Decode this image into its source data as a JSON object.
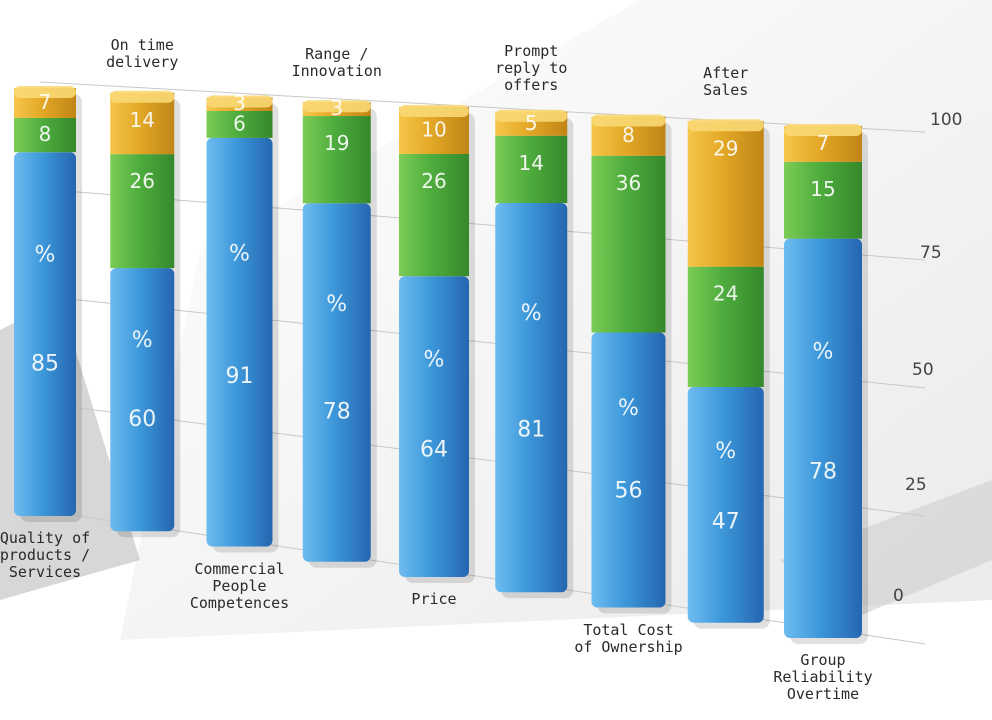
{
  "chart_data": {
    "type": "bar",
    "stacked": true,
    "categories": [
      "Quality of products / Services",
      "On time delivery",
      "Commercial People Competences",
      "Range / Innovation",
      "Price",
      "Prompt reply to offers",
      "Total Cost of Ownership",
      "After Sales",
      "Group Reliability Overtime"
    ],
    "label_lines": [
      [
        "Quality of",
        "products /",
        "Services"
      ],
      [
        "On time",
        "delivery"
      ],
      [
        "Commercial",
        "People",
        "Competences"
      ],
      [
        "Range /",
        "Innovation"
      ],
      [
        "Price"
      ],
      [
        "Prompt",
        "reply to",
        "offers"
      ],
      [
        "Total Cost",
        "of Ownership"
      ],
      [
        "After",
        "Sales"
      ],
      [
        "Group",
        "Reliability",
        "Overtime"
      ]
    ],
    "series": [
      {
        "values": [
          85,
          60,
          91,
          78,
          64,
          81,
          56,
          47,
          78
        ]
      },
      {
        "values": [
          8,
          26,
          6,
          19,
          26,
          14,
          36,
          24,
          15
        ]
      },
      {
        "values": [
          7,
          14,
          3,
          3,
          10,
          5,
          8,
          29,
          7
        ]
      }
    ],
    "unit_symbol": "%",
    "y_ticks": [
      "0",
      "25",
      "50",
      "75",
      "100"
    ],
    "ylim": [
      0,
      100
    ],
    "colors": {
      "blue": "#3a95d6",
      "green": "#4fad3e",
      "orange": "#e3a826"
    },
    "grid": true,
    "legend": "none"
  }
}
